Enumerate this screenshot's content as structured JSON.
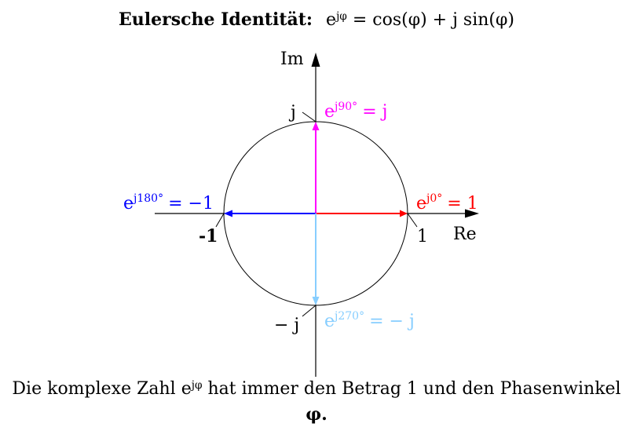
{
  "title": {
    "label": "Eulersche Identität:",
    "e": "e",
    "exp": "jφ",
    "rhs": "= cos(φ) + j sin(φ)"
  },
  "axes": {
    "x_label": "Re",
    "y_label": "Im"
  },
  "ticks": {
    "plus_one": "1",
    "minus_one": "-1",
    "plus_j": "j",
    "minus_j": "− j"
  },
  "vectors": {
    "deg0": {
      "base": "e",
      "exp": "j0°",
      "value": "= 1",
      "color": "#ff0000"
    },
    "deg90": {
      "base": "e",
      "exp": "j90°",
      "value": "= j",
      "color": "#ff00ff"
    },
    "deg180": {
      "base": "e",
      "exp": "j180°",
      "value": "= −1",
      "color": "#0000ff"
    },
    "deg270": {
      "base": "e",
      "exp": "j270°",
      "value": "= − j",
      "color": "#87ceff"
    }
  },
  "caption": {
    "pre": "Die komplexe Zahl ",
    "e": "e",
    "exp": "jφ",
    "mid": " hat immer den Betrag 1 und den Phasenwinkel ",
    "last": "φ."
  }
}
